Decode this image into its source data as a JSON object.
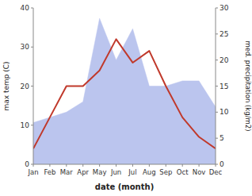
{
  "chart_data": {
    "type": "line",
    "categories": [
      "Jan",
      "Feb",
      "Mar",
      "Apr",
      "May",
      "Jun",
      "Jul",
      "Aug",
      "Sep",
      "Oct",
      "Nov",
      "Dec"
    ],
    "series": [
      {
        "type": "area",
        "axis": "y2",
        "color": "#bbc5ee",
        "values": [
          8,
          9,
          10,
          12,
          28,
          20,
          26,
          15,
          15,
          16,
          16,
          11
        ]
      },
      {
        "type": "line",
        "color": "#c0392b",
        "values": [
          4,
          12,
          20,
          20,
          24,
          32,
          26,
          29,
          20,
          12,
          7,
          4
        ]
      }
    ],
    "xlabel": "date (month)",
    "ylabel": "max temp (C)",
    "y2label": "med. precipitation (kg/m2)",
    "ylim": [
      0,
      40
    ],
    "yticks": [
      0,
      10,
      20,
      30,
      40
    ],
    "y2lim": [
      0,
      30
    ],
    "y2ticks": [
      0,
      5,
      10,
      15,
      20,
      25,
      30
    ],
    "grid": false
  }
}
